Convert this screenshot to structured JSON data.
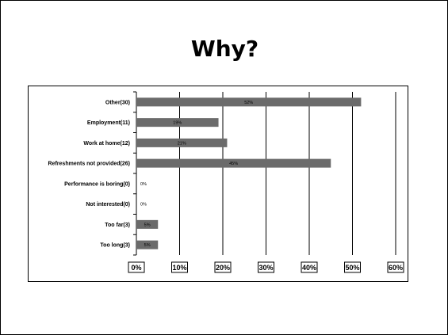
{
  "slide": {
    "title": "Why?"
  },
  "chart_data": {
    "type": "bar",
    "orientation": "horizontal",
    "categories": [
      "Other(30)",
      "Employment(11)",
      "Work at home(12)",
      "Refreshments not provided(26)",
      "Performance is boring(0)",
      "Not interested(0)",
      "Too far(3)",
      "Too long(3)"
    ],
    "values": [
      52,
      19,
      21,
      45,
      0,
      0,
      5,
      5
    ],
    "data_labels": [
      "52%",
      "19%",
      "21%",
      "45%",
      "0%",
      "0%",
      "5%",
      "5%"
    ],
    "xlim": [
      0,
      60
    ],
    "x_ticks": [
      "0%",
      "10%",
      "20%",
      "30%",
      "40%",
      "50%",
      "60%"
    ],
    "grid": true,
    "bar_color": "#6b6b6b"
  }
}
